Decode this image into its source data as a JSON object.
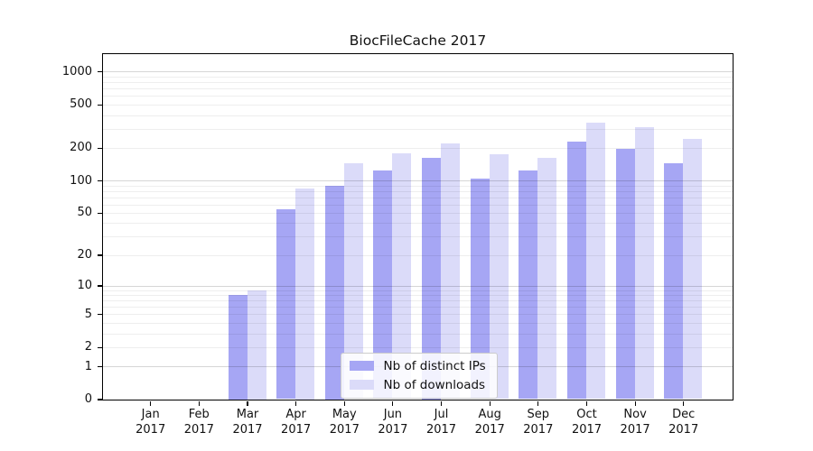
{
  "chart_data": {
    "type": "bar",
    "title": "BiocFileCache 2017",
    "xlabel": "",
    "ylabel": "",
    "yscale": "log1p",
    "ylim": [
      0,
      1450
    ],
    "grid": true,
    "legend_position": "lower center",
    "categories": [
      "Jan 2017",
      "Feb 2017",
      "Mar 2017",
      "Apr 2017",
      "May 2017",
      "Jun 2017",
      "Jul 2017",
      "Aug 2017",
      "Sep 2017",
      "Oct 2017",
      "Nov 2017",
      "Dec 2017"
    ],
    "ytick_labels": [
      "0",
      "1",
      "2",
      "5",
      "10",
      "20",
      "50",
      "100",
      "200",
      "500",
      "1000"
    ],
    "ytick_values": [
      0,
      1,
      2,
      5,
      10,
      20,
      50,
      100,
      200,
      500,
      1000
    ],
    "minor_grid_values": [
      2,
      3,
      4,
      5,
      6,
      7,
      8,
      9,
      20,
      30,
      40,
      50,
      60,
      70,
      80,
      90,
      200,
      300,
      400,
      500,
      600,
      700,
      800,
      900
    ],
    "major_grid_values": [
      1,
      10,
      100,
      1000
    ],
    "series": [
      {
        "name": "Nb of distinct IPs",
        "color": "#a6a6f4",
        "values": [
          0,
          0,
          8,
          54,
          89,
          124,
          163,
          104,
          124,
          227,
          194,
          143
        ]
      },
      {
        "name": "Nb of downloads",
        "color": "#dbdbf9",
        "values": [
          0,
          0,
          9,
          84,
          143,
          177,
          221,
          174,
          162,
          339,
          308,
          242
        ]
      }
    ]
  },
  "colors": {
    "spine": "#000000",
    "minor_grid": "rgba(0,0,0,0.065)",
    "major_grid": "rgba(0,0,0,0.16)",
    "background": "#ffffff",
    "text": "#111111"
  }
}
